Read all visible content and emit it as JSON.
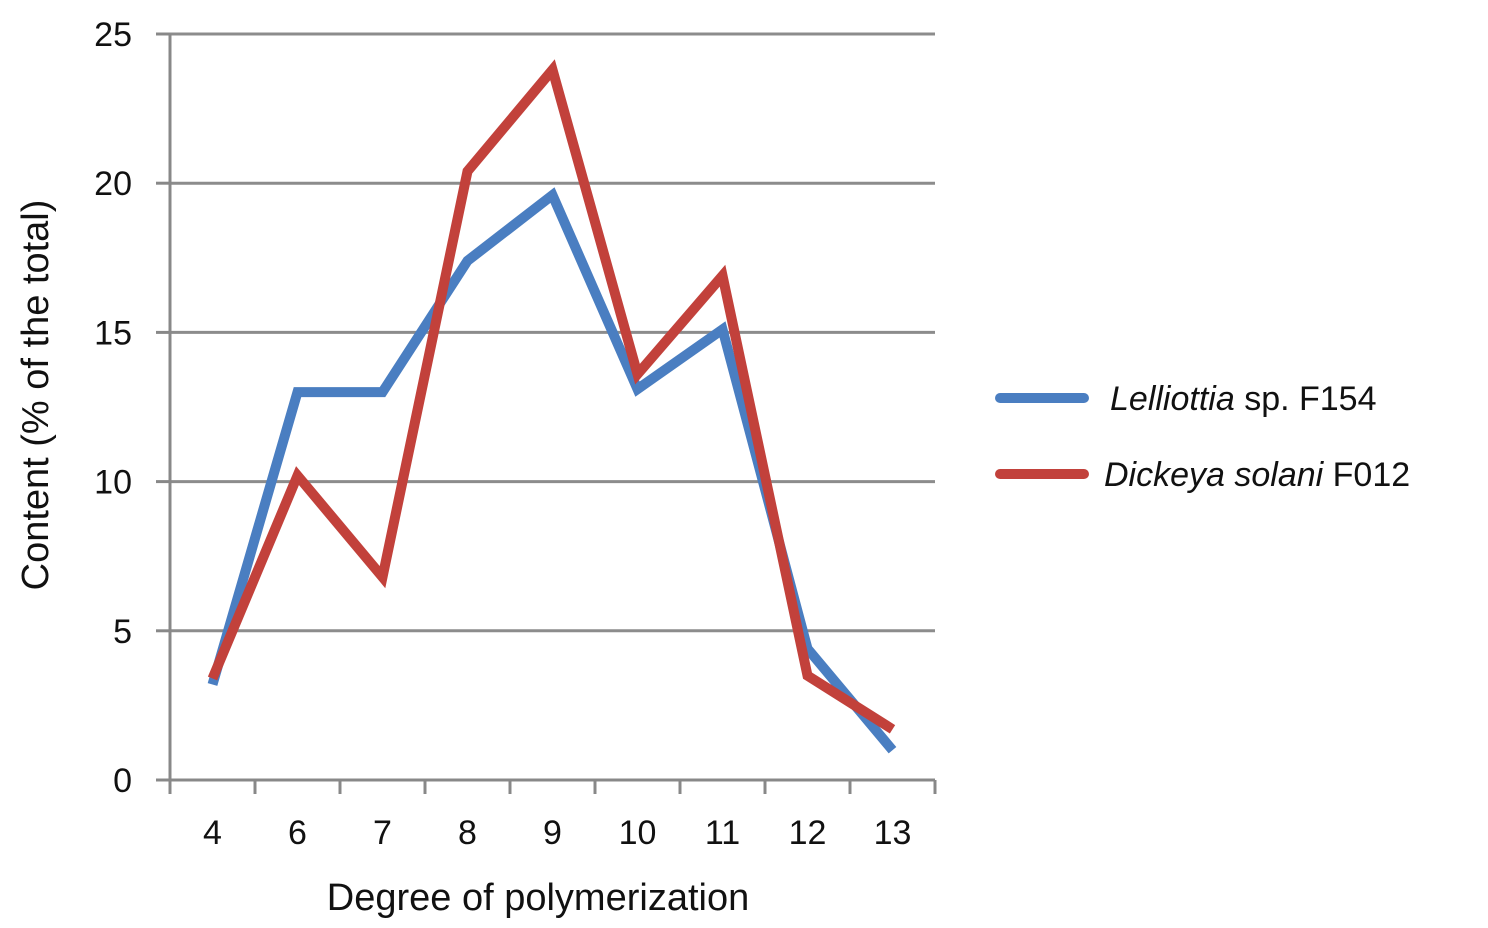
{
  "chart_data": {
    "type": "line",
    "categories": [
      "4",
      "6",
      "7",
      "8",
      "9",
      "10",
      "11",
      "12",
      "13"
    ],
    "series": [
      {
        "name_italic": "Lelliottia",
        "name_rest": " sp. F154",
        "color": "#4a7ec1",
        "values": [
          3.2,
          13.0,
          13.0,
          17.4,
          19.6,
          13.1,
          15.1,
          4.4,
          1.0
        ]
      },
      {
        "name_italic": "Dickeya solani",
        "name_rest": " F012",
        "color": "#c2413b",
        "values": [
          3.4,
          10.2,
          6.8,
          20.4,
          23.8,
          13.6,
          16.9,
          3.5,
          1.7
        ]
      }
    ],
    "xlabel": "Degree of polymerization",
    "ylabel": "Content (% of the total)",
    "ylim": [
      0,
      25
    ],
    "yticks": [
      "0",
      "5",
      "10",
      "15",
      "20",
      "25"
    ],
    "grid": true,
    "legend_position": "right"
  }
}
